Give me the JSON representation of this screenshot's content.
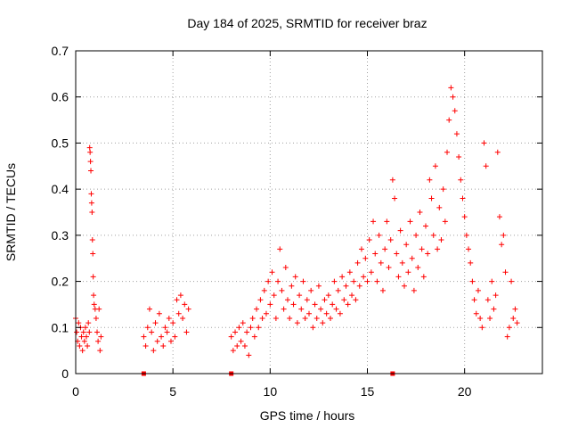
{
  "chart_data": {
    "type": "scatter",
    "title": "Day 184 of 2025, SRMTID for receiver braz",
    "xlabel": "GPS time / hours",
    "ylabel": "SRMTID / TECUs",
    "xlim": [
      0,
      24
    ],
    "ylim": [
      0,
      0.7
    ],
    "xticks": [
      0,
      5,
      10,
      15,
      20
    ],
    "yticks": [
      0,
      0.1,
      0.2,
      0.3,
      0.4,
      0.5,
      0.6,
      0.7
    ],
    "xtick_labels": [
      "0",
      "5",
      "10",
      "15",
      "20"
    ],
    "ytick_labels": [
      "0",
      "0.1",
      "0.2",
      "0.3",
      "0.4",
      "0.5",
      "0.6",
      "0.7"
    ],
    "grid": true,
    "marker": "+",
    "color": "#ff0000",
    "zero_line_markers_x": [
      3.5,
      8.0,
      16.3
    ],
    "series": [
      {
        "name": "SRMTID",
        "points": [
          [
            0.0,
            0.12
          ],
          [
            0.05,
            0.09
          ],
          [
            0.1,
            0.07
          ],
          [
            0.15,
            0.11
          ],
          [
            0.2,
            0.06
          ],
          [
            0.25,
            0.1
          ],
          [
            0.3,
            0.08
          ],
          [
            0.35,
            0.05
          ],
          [
            0.4,
            0.09
          ],
          [
            0.45,
            0.07
          ],
          [
            0.5,
            0.1
          ],
          [
            0.55,
            0.08
          ],
          [
            0.6,
            0.06
          ],
          [
            0.65,
            0.11
          ],
          [
            0.7,
            0.09
          ],
          [
            0.72,
            0.49
          ],
          [
            0.74,
            0.48
          ],
          [
            0.76,
            0.46
          ],
          [
            0.78,
            0.44
          ],
          [
            0.8,
            0.39
          ],
          [
            0.82,
            0.37
          ],
          [
            0.84,
            0.35
          ],
          [
            0.86,
            0.29
          ],
          [
            0.88,
            0.26
          ],
          [
            0.9,
            0.21
          ],
          [
            0.92,
            0.17
          ],
          [
            0.95,
            0.15
          ],
          [
            1.0,
            0.14
          ],
          [
            1.05,
            0.12
          ],
          [
            1.1,
            0.09
          ],
          [
            1.15,
            0.07
          ],
          [
            1.2,
            0.14
          ],
          [
            1.25,
            0.05
          ],
          [
            1.3,
            0.08
          ],
          [
            3.5,
            0.08
          ],
          [
            3.6,
            0.06
          ],
          [
            3.7,
            0.1
          ],
          [
            3.8,
            0.14
          ],
          [
            3.9,
            0.09
          ],
          [
            4.0,
            0.05
          ],
          [
            4.1,
            0.11
          ],
          [
            4.2,
            0.07
          ],
          [
            4.3,
            0.13
          ],
          [
            4.4,
            0.08
          ],
          [
            4.5,
            0.06
          ],
          [
            4.6,
            0.1
          ],
          [
            4.7,
            0.09
          ],
          [
            4.8,
            0.12
          ],
          [
            4.9,
            0.07
          ],
          [
            5.0,
            0.11
          ],
          [
            5.1,
            0.08
          ],
          [
            5.2,
            0.16
          ],
          [
            5.3,
            0.13
          ],
          [
            5.4,
            0.17
          ],
          [
            5.5,
            0.12
          ],
          [
            5.6,
            0.15
          ],
          [
            5.7,
            0.09
          ],
          [
            5.8,
            0.14
          ],
          [
            8.0,
            0.08
          ],
          [
            8.1,
            0.05
          ],
          [
            8.2,
            0.09
          ],
          [
            8.3,
            0.06
          ],
          [
            8.4,
            0.1
          ],
          [
            8.5,
            0.07
          ],
          [
            8.6,
            0.11
          ],
          [
            8.7,
            0.06
          ],
          [
            8.8,
            0.09
          ],
          [
            8.9,
            0.04
          ],
          [
            9.0,
            0.1
          ],
          [
            9.1,
            0.12
          ],
          [
            9.2,
            0.08
          ],
          [
            9.3,
            0.14
          ],
          [
            9.4,
            0.1
          ],
          [
            9.5,
            0.16
          ],
          [
            9.6,
            0.12
          ],
          [
            9.7,
            0.18
          ],
          [
            9.8,
            0.13
          ],
          [
            9.9,
            0.2
          ],
          [
            10.0,
            0.15
          ],
          [
            10.1,
            0.22
          ],
          [
            10.2,
            0.17
          ],
          [
            10.3,
            0.12
          ],
          [
            10.4,
            0.2
          ],
          [
            10.5,
            0.27
          ],
          [
            10.6,
            0.18
          ],
          [
            10.7,
            0.14
          ],
          [
            10.8,
            0.23
          ],
          [
            10.9,
            0.16
          ],
          [
            11.0,
            0.12
          ],
          [
            11.1,
            0.19
          ],
          [
            11.2,
            0.15
          ],
          [
            11.3,
            0.21
          ],
          [
            11.4,
            0.11
          ],
          [
            11.5,
            0.17
          ],
          [
            11.6,
            0.14
          ],
          [
            11.7,
            0.2
          ],
          [
            11.8,
            0.12
          ],
          [
            11.9,
            0.16
          ],
          [
            12.0,
            0.13
          ],
          [
            12.1,
            0.18
          ],
          [
            12.2,
            0.1
          ],
          [
            12.3,
            0.15
          ],
          [
            12.4,
            0.12
          ],
          [
            12.5,
            0.19
          ],
          [
            12.6,
            0.14
          ],
          [
            12.7,
            0.11
          ],
          [
            12.8,
            0.16
          ],
          [
            12.9,
            0.13
          ],
          [
            13.0,
            0.17
          ],
          [
            13.1,
            0.12
          ],
          [
            13.2,
            0.15
          ],
          [
            13.3,
            0.2
          ],
          [
            13.4,
            0.14
          ],
          [
            13.5,
            0.18
          ],
          [
            13.6,
            0.13
          ],
          [
            13.7,
            0.21
          ],
          [
            13.8,
            0.16
          ],
          [
            13.9,
            0.19
          ],
          [
            14.0,
            0.15
          ],
          [
            14.1,
            0.22
          ],
          [
            14.2,
            0.17
          ],
          [
            14.3,
            0.2
          ],
          [
            14.4,
            0.16
          ],
          [
            14.5,
            0.24
          ],
          [
            14.6,
            0.19
          ],
          [
            14.7,
            0.27
          ],
          [
            14.8,
            0.21
          ],
          [
            14.9,
            0.25
          ],
          [
            15.0,
            0.2
          ],
          [
            15.1,
            0.29
          ],
          [
            15.2,
            0.22
          ],
          [
            15.3,
            0.33
          ],
          [
            15.4,
            0.26
          ],
          [
            15.5,
            0.2
          ],
          [
            15.6,
            0.3
          ],
          [
            15.7,
            0.24
          ],
          [
            15.8,
            0.18
          ],
          [
            15.9,
            0.27
          ],
          [
            16.0,
            0.33
          ],
          [
            16.1,
            0.23
          ],
          [
            16.2,
            0.29
          ],
          [
            16.3,
            0.42
          ],
          [
            16.4,
            0.38
          ],
          [
            16.5,
            0.26
          ],
          [
            16.6,
            0.21
          ],
          [
            16.7,
            0.31
          ],
          [
            16.8,
            0.24
          ],
          [
            16.9,
            0.19
          ],
          [
            17.0,
            0.28
          ],
          [
            17.1,
            0.22
          ],
          [
            17.2,
            0.33
          ],
          [
            17.3,
            0.25
          ],
          [
            17.4,
            0.18
          ],
          [
            17.5,
            0.3
          ],
          [
            17.6,
            0.23
          ],
          [
            17.7,
            0.35
          ],
          [
            17.8,
            0.27
          ],
          [
            17.9,
            0.21
          ],
          [
            18.0,
            0.32
          ],
          [
            18.1,
            0.26
          ],
          [
            18.2,
            0.42
          ],
          [
            18.3,
            0.38
          ],
          [
            18.4,
            0.3
          ],
          [
            18.5,
            0.45
          ],
          [
            18.6,
            0.27
          ],
          [
            18.7,
            0.36
          ],
          [
            18.8,
            0.29
          ],
          [
            18.9,
            0.4
          ],
          [
            19.0,
            0.33
          ],
          [
            19.1,
            0.48
          ],
          [
            19.2,
            0.55
          ],
          [
            19.3,
            0.62
          ],
          [
            19.4,
            0.6
          ],
          [
            19.5,
            0.57
          ],
          [
            19.6,
            0.52
          ],
          [
            19.7,
            0.47
          ],
          [
            19.8,
            0.42
          ],
          [
            19.9,
            0.38
          ],
          [
            20.0,
            0.34
          ],
          [
            20.1,
            0.3
          ],
          [
            20.2,
            0.27
          ],
          [
            20.3,
            0.24
          ],
          [
            20.4,
            0.2
          ],
          [
            20.5,
            0.16
          ],
          [
            20.6,
            0.13
          ],
          [
            20.7,
            0.18
          ],
          [
            20.8,
            0.12
          ],
          [
            20.9,
            0.1
          ],
          [
            21.0,
            0.5
          ],
          [
            21.1,
            0.45
          ],
          [
            21.2,
            0.16
          ],
          [
            21.3,
            0.12
          ],
          [
            21.4,
            0.2
          ],
          [
            21.5,
            0.14
          ],
          [
            21.6,
            0.17
          ],
          [
            21.7,
            0.48
          ],
          [
            21.8,
            0.34
          ],
          [
            21.9,
            0.28
          ],
          [
            22.0,
            0.3
          ],
          [
            22.1,
            0.22
          ],
          [
            22.2,
            0.08
          ],
          [
            22.3,
            0.1
          ],
          [
            22.4,
            0.2
          ],
          [
            22.5,
            0.12
          ],
          [
            22.6,
            0.14
          ],
          [
            22.7,
            0.11
          ]
        ]
      }
    ]
  }
}
